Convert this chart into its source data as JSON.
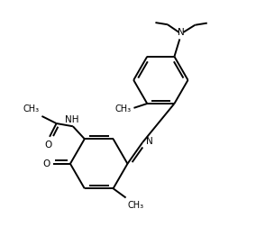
{
  "background_color": "#ffffff",
  "line_color": "#000000",
  "line_width": 1.4,
  "font_size": 7.5,
  "fig_width": 2.84,
  "fig_height": 2.72,
  "dpi": 100,
  "xlim": [
    0,
    10
  ],
  "ylim": [
    0,
    10
  ]
}
